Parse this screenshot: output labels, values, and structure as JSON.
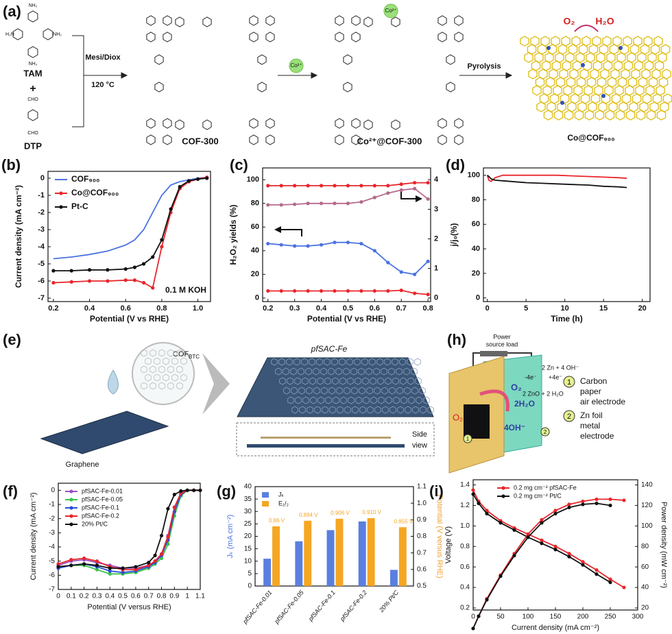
{
  "schematics": {
    "a": {
      "label": "(a)",
      "tam": "TAM",
      "plus": "+",
      "dtp": "DTP",
      "condition1": "Mesi/Diox",
      "condition2": "120 °C",
      "cof300": "COF-300",
      "co_ion": "Co²⁺",
      "co_cof300": "Co²⁺@COF-300",
      "pyrolysis": "Pyrolysis",
      "o2": "O₂",
      "h2o": "H₂O",
      "product": "Co@COF₉₀₀",
      "nh2": [
        "NH₂",
        "H₂N",
        "NH₂",
        "NH₂"
      ],
      "cho": [
        "CHO",
        "CHO"
      ]
    },
    "e": {
      "label": "(e)",
      "cof": "COF",
      "cof_sub": "BTC",
      "product": "pfSAC-Fe",
      "side_view": [
        "Side",
        "view"
      ],
      "graphene": "Graphene"
    },
    "h": {
      "label": "(h)",
      "power": [
        "Power",
        "source load"
      ],
      "anode_reaction": "2 Zn + 4 OH⁻",
      "cathode_electrons": "-4e⁻",
      "anode_electrons": "+4e⁻",
      "product_reaction": "2 ZnO + 2 H₂O",
      "o2": "O₂",
      "water": "2H₂O",
      "hydroxide": "4OH⁻",
      "n1": "1",
      "n2": "2",
      "legend1": [
        "Carbon",
        "paper",
        "air electrode"
      ],
      "legend2": [
        "Zn foil",
        "metal",
        "electrode"
      ]
    }
  },
  "chart_data": [
    {
      "type": "line",
      "label": "(b)",
      "xlabel": "Potential (V vs RHE)",
      "ylabel": "Current density (mA cm⁻²)",
      "annotation": "0.1 M KOH",
      "legend": "upper left",
      "x": [
        0.2,
        0.3,
        0.4,
        0.5,
        0.6,
        0.65,
        0.7,
        0.75,
        0.8,
        0.85,
        0.9,
        0.95,
        1.0,
        1.05
      ],
      "xlim": [
        0.17,
        1.07
      ],
      "xticks": [
        0.2,
        0.4,
        0.6,
        0.8,
        {
          "value": 1,
          "label": "1.0"
        }
      ],
      "ylim": [
        -7.2,
        0.4
      ],
      "yticks": [
        0,
        -1,
        -2,
        -3,
        -4,
        -5,
        -6,
        -7
      ],
      "series": [
        {
          "name": "COF₉₀₀",
          "color": "#4a72e0",
          "values": [
            -4.7,
            -4.6,
            -4.45,
            -4.25,
            -3.9,
            -3.6,
            -3.0,
            -2.0,
            -1.0,
            -0.4,
            -0.2,
            -0.1,
            0,
            0.05
          ]
        },
        {
          "name": "Co@COF₉₀₀",
          "color": "#e8262b",
          "markers": true,
          "values": [
            -6.1,
            -6.05,
            -6.0,
            -6.0,
            -5.95,
            -5.95,
            -6.1,
            -6.4,
            -4.0,
            -2.0,
            -0.6,
            -0.2,
            -0.05,
            0.05
          ]
        },
        {
          "name": "Pt-C",
          "color": "#111111",
          "markers": true,
          "values": [
            -5.4,
            -5.4,
            -5.35,
            -5.35,
            -5.3,
            -5.2,
            -5.0,
            -4.6,
            -3.6,
            -1.8,
            -0.5,
            -0.15,
            -0.05,
            0
          ]
        }
      ]
    },
    {
      "type": "line",
      "label": "(c)",
      "xlabel": "Potential (V vs RHE)",
      "ylabel": "H₂O₂ yields (%)",
      "x": [
        0.2,
        0.25,
        0.3,
        0.35,
        0.4,
        0.45,
        0.5,
        0.55,
        0.6,
        0.65,
        0.7,
        0.75,
        0.8
      ],
      "xlim": [
        0.18,
        0.81
      ],
      "xticks": [
        0.2,
        0.3,
        0.4,
        0.5,
        0.6,
        0.7,
        0.8
      ],
      "ylim": [
        -3,
        110
      ],
      "yticks": [
        0,
        20,
        40,
        60,
        80,
        100
      ],
      "y2lim": [
        -0.12,
        4.4
      ],
      "y2ticks": [
        0,
        1,
        2,
        3,
        4
      ],
      "series": [
        {
          "color": "#4a72e0",
          "markers": true,
          "values": [
            46,
            45,
            44,
            44,
            45,
            47,
            47,
            46,
            40,
            30,
            22,
            20,
            31
          ]
        },
        {
          "color": "#e8262b",
          "markers": true,
          "values": [
            6,
            6,
            6,
            6,
            6,
            6,
            6,
            6,
            6,
            6,
            6.5,
            4,
            3
          ]
        },
        {
          "color": "#e8262b",
          "axis": "y2",
          "markers": true,
          "values": [
            3.8,
            3.8,
            3.8,
            3.8,
            3.8,
            3.8,
            3.8,
            3.8,
            3.8,
            3.8,
            3.85,
            3.9,
            3.9
          ]
        },
        {
          "color": "#b56a8a",
          "axis": "y2",
          "markers": true,
          "values": [
            3.15,
            3.15,
            3.17,
            3.2,
            3.2,
            3.2,
            3.2,
            3.25,
            3.4,
            3.55,
            3.65,
            3.7,
            3.35
          ]
        }
      ]
    },
    {
      "type": "line",
      "label": "(d)",
      "xlabel": "Time (h)",
      "ylabel": "j/j₀(%)",
      "x": [
        0,
        0.2,
        0.5,
        1,
        2,
        3,
        5,
        7,
        9,
        11,
        13,
        15,
        17,
        18
      ],
      "xlim": [
        -0.5,
        21
      ],
      "xticks": [
        0,
        5,
        10,
        15,
        20
      ],
      "ylim": [
        -3,
        106
      ],
      "yticks": [
        0,
        20,
        40,
        60,
        80,
        100
      ],
      "series": [
        {
          "color": "#e8262b",
          "values": [
            100,
            96,
            95,
            98,
            100,
            100,
            100,
            100,
            100,
            99.5,
            99,
            98.5,
            98,
            97.5
          ]
        },
        {
          "color": "#111111",
          "values": [
            100,
            99,
            97,
            96,
            95.5,
            95,
            94,
            93.5,
            93,
            92.5,
            92,
            91,
            90.5,
            90
          ]
        }
      ]
    },
    {
      "type": "line",
      "label": "(f)",
      "xlabel": "Potential (V versus RHE)",
      "ylabel": "Current density (mA cm⁻²)",
      "legend": "upper left",
      "x": [
        0,
        0.1,
        0.2,
        0.3,
        0.4,
        0.5,
        0.6,
        0.7,
        0.75,
        0.8,
        0.85,
        0.9,
        0.95,
        1.0,
        1.05,
        1.1
      ],
      "xlim": [
        0,
        1.1
      ],
      "xticks": [
        0,
        0.1,
        0.2,
        0.3,
        0.4,
        0.5,
        0.6,
        0.7,
        0.8,
        0.9,
        1,
        1.1
      ],
      "ylim": [
        -7,
        0.5
      ],
      "yticks": [
        0,
        -1,
        -2,
        -3,
        -4,
        -5,
        -6,
        -7
      ],
      "series": [
        {
          "name": "pfSAC-Fe-0.01",
          "color": "#9b4fc0",
          "markers": true,
          "values": [
            -5.3,
            -5.0,
            -4.9,
            -5.1,
            -5.3,
            -5.5,
            -5.5,
            -5.3,
            -5.0,
            -4.5,
            -3.2,
            -1.2,
            -0.2,
            0,
            0,
            0
          ]
        },
        {
          "name": "pfSAC-Fe-0.05",
          "color": "#3cc24a",
          "markers": true,
          "values": [
            -5.4,
            -5.3,
            -5.3,
            -5.6,
            -5.9,
            -5.9,
            -5.8,
            -5.5,
            -5.2,
            -4.8,
            -3.8,
            -1.8,
            -0.4,
            0,
            0,
            0
          ]
        },
        {
          "name": "pfSAC-Fe-0.1",
          "color": "#2a4fd8",
          "markers": true,
          "values": [
            -5.5,
            -5.3,
            -5.2,
            -5.4,
            -5.7,
            -5.8,
            -5.7,
            -5.4,
            -5.1,
            -4.6,
            -3.5,
            -1.5,
            -0.3,
            0,
            0,
            0
          ]
        },
        {
          "name": "pfSAC-Fe-0.2",
          "color": "#e8262b",
          "markers": true,
          "values": [
            -5.2,
            -4.9,
            -4.8,
            -5.0,
            -5.4,
            -5.6,
            -5.6,
            -5.3,
            -5.0,
            -4.5,
            -3.3,
            -1.2,
            -0.2,
            0,
            0,
            0
          ]
        },
        {
          "name": "20% Pt/C",
          "color": "#111111",
          "markers": true,
          "values": [
            -5.4,
            -5.3,
            -5.2,
            -5.3,
            -5.5,
            -5.5,
            -5.4,
            -5.1,
            -4.6,
            -3.2,
            -1.3,
            -0.3,
            -0.05,
            0,
            0,
            0
          ]
        }
      ]
    },
    {
      "type": "bar",
      "label": "(g)",
      "ylabel": "Jₖ (mA cm⁻²)",
      "y2label": "Potential (V versus RHE)",
      "ylabel_color": "#4a72e0",
      "y2label_color": "#f0a030",
      "legend": "upper left",
      "categories": [
        "pfSAC-Fe-0.01",
        "pfSAC-Fe-0.05",
        "pfSAC-Fe-0.1",
        "pfSAC-Fe-0.2",
        "20% Pt/C"
      ],
      "ylim": [
        0,
        40
      ],
      "yticks": [
        0,
        5,
        10,
        15,
        20,
        25,
        30,
        35,
        40
      ],
      "y2lim": [
        0.5,
        1.1
      ],
      "y2ticks": [
        0.5,
        0.6,
        0.7,
        0.8,
        0.9,
        {
          "value": 1,
          "label": "1.0"
        },
        1.1
      ],
      "series": [
        {
          "name": "Jₖ",
          "color": "#5b7fe0",
          "values": [
            11,
            18,
            22.5,
            26,
            6.5
          ]
        },
        {
          "name": "E₁/₂",
          "color": "#f5a623",
          "axis": "y2",
          "values": [
            0.86,
            0.894,
            0.906,
            0.91,
            0.855
          ],
          "value_labels": [
            "0.86 V",
            "0.894 V",
            "0.906 V",
            "0.910 V",
            "0.855 V"
          ]
        }
      ]
    },
    {
      "type": "line",
      "label": "(i)",
      "xlabel": "Current density (mA cm⁻²)",
      "ylabel": "Voltage (V)",
      "y2label": "Power density (mW cm⁻²)",
      "legend": "upper center",
      "xlim": [
        0,
        300
      ],
      "xticks": [
        0,
        50,
        100,
        150,
        200,
        250,
        300
      ],
      "ylim": [
        0.18,
        1.45
      ],
      "yticks": [
        0.2,
        0.4,
        0.6,
        0.8,
        {
          "value": 1,
          "label": "1.0"
        },
        1.2,
        1.4
      ],
      "y2lim": [
        18,
        145
      ],
      "y2ticks": [
        20,
        40,
        60,
        80,
        100,
        120,
        140
      ],
      "series": [
        {
          "name": "0.2 mg cm⁻² pfSAC-Fe",
          "color": "#e8262b",
          "markers": true,
          "x": [
            0,
            10,
            25,
            50,
            75,
            100,
            125,
            150,
            175,
            200,
            225,
            250,
            275
          ],
          "values": [
            1.35,
            1.24,
            1.15,
            1.05,
            0.98,
            0.92,
            0.86,
            0.8,
            0.73,
            0.65,
            0.57,
            0.48,
            0.4
          ]
        },
        {
          "name": "0.2 mg cm⁻² Pt/C",
          "color": "#111111",
          "markers": true,
          "x": [
            0,
            10,
            25,
            50,
            75,
            100,
            125,
            150,
            175,
            200,
            225,
            250
          ],
          "values": [
            1.31,
            1.22,
            1.12,
            1.03,
            0.96,
            0.89,
            0.83,
            0.77,
            0.7,
            0.62,
            0.53,
            0.45
          ]
        },
        {
          "color": "#e8262b",
          "axis": "y2",
          "markers": true,
          "x": [
            0,
            10,
            25,
            50,
            75,
            100,
            125,
            150,
            175,
            200,
            225,
            250,
            275
          ],
          "values": [
            0,
            12,
            29,
            52,
            73,
            92,
            106,
            115,
            121,
            124,
            126,
            126,
            125
          ]
        },
        {
          "color": "#111111",
          "axis": "y2",
          "markers": true,
          "x": [
            0,
            10,
            25,
            50,
            75,
            100,
            125,
            150,
            175,
            200,
            225,
            250
          ],
          "values": [
            0,
            12,
            28,
            51,
            71,
            89,
            103,
            112,
            118,
            121,
            122,
            120
          ]
        }
      ]
    }
  ]
}
